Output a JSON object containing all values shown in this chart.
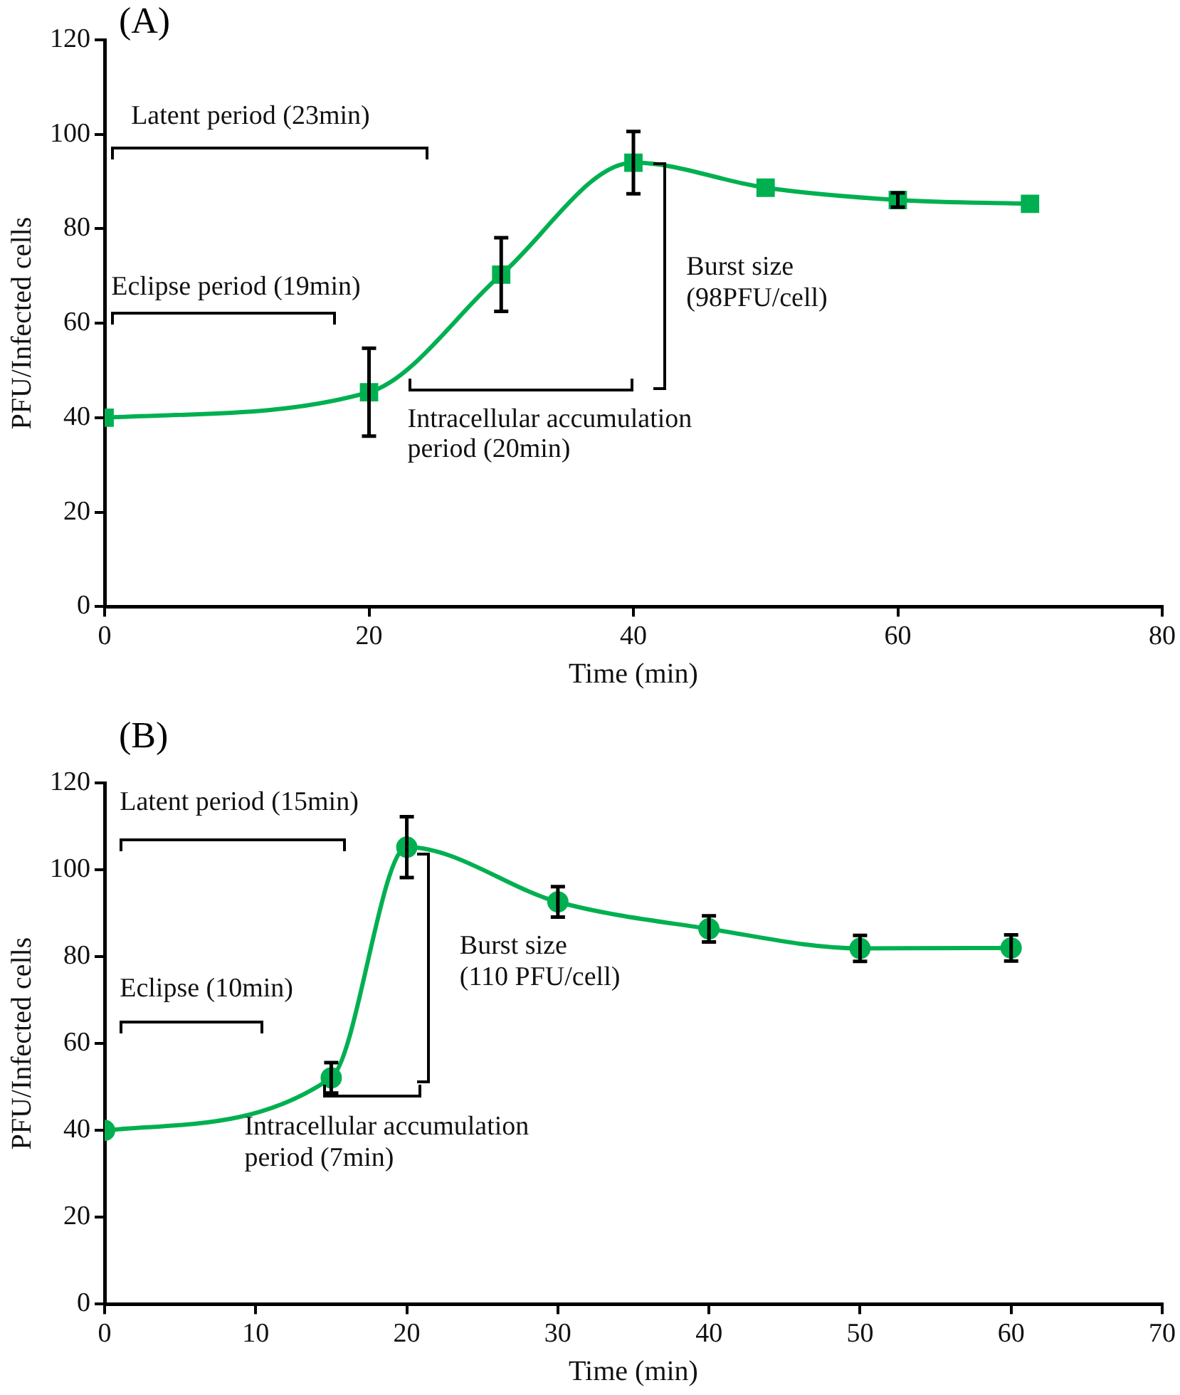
{
  "chart_data": [
    {
      "type": "line",
      "title": "(A)",
      "xlabel": "Time (min)",
      "ylabel": "PFU/Infected cells",
      "x": [
        0,
        20,
        30,
        40,
        50,
        60,
        70
      ],
      "series": [
        {
          "color": "#00b050",
          "values": [
            40,
            45.4,
            70.3,
            94,
            88.7,
            86.1,
            85.3
          ],
          "errors": [
            null,
            9.3,
            7.8,
            6.6,
            null,
            1.5,
            null
          ]
        }
      ],
      "xlim": [
        0,
        80
      ],
      "xticks": [
        0,
        20,
        40,
        60,
        80
      ],
      "ylim": [
        0,
        120
      ],
      "yticks": [
        0,
        20,
        40,
        60,
        80,
        100,
        120
      ],
      "grid": false,
      "legend": false,
      "marker": "square",
      "line_style": "solid",
      "annotations": [
        "Latent period (23min)",
        "Eclipse period (19min)",
        {
          "text": "Intracellular accumulation\nperiod (20min)",
          "x": 20,
          "y": 45.4
        },
        "Burst size\n(98PFU/cell)"
      ]
    },
    {
      "type": "line",
      "title": "(B)",
      "xlabel": "Time (min)",
      "ylabel": "PFU/Infected cells",
      "x": [
        0,
        15,
        20,
        30,
        40,
        50,
        60
      ],
      "series": [
        {
          "color": "#00b050",
          "values": [
            40,
            52.1,
            105.2,
            92.6,
            86.4,
            81.9,
            82
          ],
          "errors": [
            null,
            3.5,
            7,
            3.5,
            3,
            3,
            3
          ]
        }
      ],
      "xlim": [
        0,
        70
      ],
      "xticks": [
        0,
        10,
        20,
        30,
        40,
        50,
        60,
        70
      ],
      "ylim": [
        0,
        120
      ],
      "yticks": [
        0,
        20,
        40,
        60,
        80,
        100,
        120
      ],
      "grid": false,
      "legend": false,
      "marker": "circle",
      "line_style": "solid",
      "annotations": [
        "Latent period (15min)",
        "Eclipse (10min)",
        {
          "text": "Intracellular accumulation\nperiod (7min)",
          "x": 15,
          "y": 52.1
        },
        "Burst size\n(110 PFU/cell)"
      ]
    }
  ]
}
